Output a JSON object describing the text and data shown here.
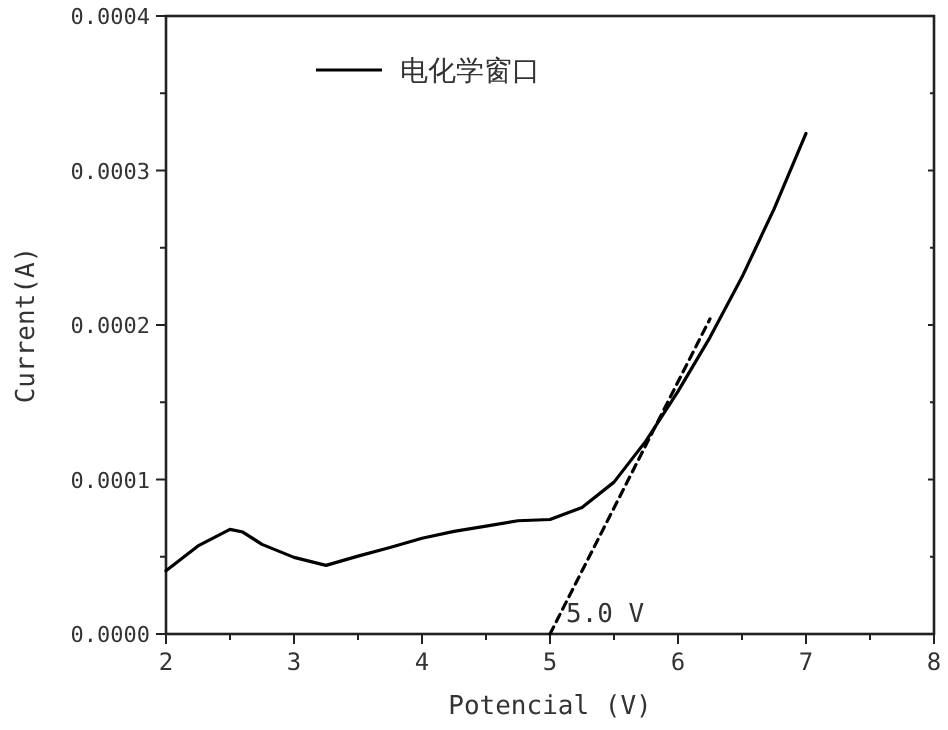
{
  "chart_data": {
    "type": "line",
    "xlabel": "Potencial (V)",
    "ylabel": "Current(A)",
    "xlim": [
      2,
      8
    ],
    "xticks": [
      2,
      3,
      4,
      5,
      6,
      7,
      8
    ],
    "ylim": [
      0,
      0.0004
    ],
    "yticks": [
      {
        "value": 0,
        "label": "0.0000"
      },
      {
        "value": 0.0001,
        "label": "0.0001"
      },
      {
        "value": 0.0002,
        "label": "0.0002"
      },
      {
        "value": 0.0003,
        "label": "0.0003"
      },
      {
        "value": 0.0004,
        "label": "0.0004"
      }
    ],
    "grid": false,
    "legend": "top left",
    "marker": "none",
    "series": [
      {
        "name": "电化学窗口",
        "color": "#000000",
        "line_style": "solid",
        "x": [
          2,
          2.25,
          2.5,
          2.6,
          2.75,
          3,
          3.25,
          3.5,
          3.75,
          4,
          4.25,
          4.5,
          4.75,
          5,
          5.25,
          5.5,
          5.75,
          6,
          6.25,
          6.5,
          6.75,
          7
        ],
        "values": [
          4.1e-05,
          5.7e-05,
          6.77e-05,
          6.6e-05,
          5.8e-05,
          4.96e-05,
          4.44e-05,
          5.04e-05,
          5.6e-05,
          6.2e-05,
          6.64e-05,
          6.98e-05,
          7.33e-05,
          7.41e-05,
          8.19e-05,
          9.83e-05,
          0.000125,
          0.000157,
          0.000192,
          0.000231,
          0.000275,
          0.000324
        ]
      },
      {
        "color": "#000000",
        "line_style": "dashed",
        "x": [
          5.0,
          6.25
        ],
        "values": [
          0,
          0.000204
        ]
      }
    ],
    "annotations": [
      {
        "text": "5.0 V",
        "x": 5,
        "y": 0
      }
    ]
  }
}
